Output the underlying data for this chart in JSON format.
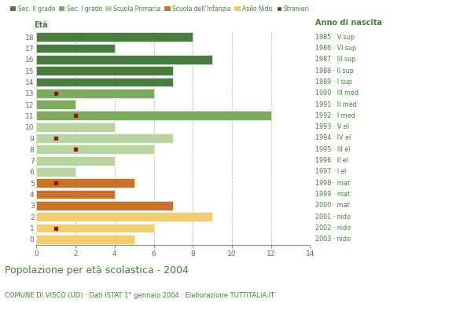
{
  "ages": [
    18,
    17,
    16,
    15,
    14,
    13,
    12,
    11,
    10,
    9,
    8,
    7,
    6,
    5,
    4,
    3,
    2,
    1,
    0
  ],
  "anno_nascita": [
    "1985 · V sup",
    "1986 · VI sup",
    "1987 · III sup",
    "1988 · II sup",
    "1989 · I sup",
    "1990 · III med",
    "1991 · II med",
    "1992 · I med",
    "1993 · V el",
    "1994 · IV el",
    "1995 · III el",
    "1996 · II el",
    "1997 · I el",
    "1998 · mat",
    "1999 · mat",
    "2000 · mat",
    "2001 · nido",
    "2002 · nido",
    "2003 · nido"
  ],
  "values": [
    8,
    4,
    9,
    7,
    7,
    6,
    2,
    12,
    4,
    7,
    6,
    4,
    2,
    5,
    4,
    7,
    9,
    6,
    5
  ],
  "stranieri": [
    0,
    0,
    0,
    0,
    0,
    1,
    0,
    2,
    0,
    1,
    2,
    0,
    0,
    1,
    0,
    0,
    0,
    1,
    0
  ],
  "bar_colors": [
    "#4a7c3f",
    "#4a7c3f",
    "#4a7c3f",
    "#4a7c3f",
    "#4a7c3f",
    "#7aab5e",
    "#7aab5e",
    "#7aab5e",
    "#b8d4a0",
    "#b8d4a0",
    "#b8d4a0",
    "#b8d4a0",
    "#b8d4a0",
    "#c8722a",
    "#c8722a",
    "#c8722a",
    "#f0cc70",
    "#f0cc70",
    "#f0cc70"
  ],
  "color_sec2": "#4a7c3f",
  "color_sec1": "#7aab5e",
  "color_prim": "#b8d4a0",
  "color_inf": "#c8722a",
  "color_nido": "#f0cc70",
  "color_stranieri": "#8b1a1a",
  "text_color": "#4a7c3f",
  "title": "Popolazione per età scolastica - 2004",
  "subtitle": "COMUNE DI VISCO (UD) · Dati ISTAT 1° gennaio 2004 · Elaborazione TUTTITALIA.IT",
  "xlabel_eta": "Età",
  "xlabel_anno": "Anno di nascita",
  "xlim": [
    0,
    14
  ],
  "xticks": [
    0,
    2,
    4,
    6,
    8,
    10,
    12,
    14
  ],
  "bg_color": "#ffffff",
  "plot_bg": "#ffffff"
}
